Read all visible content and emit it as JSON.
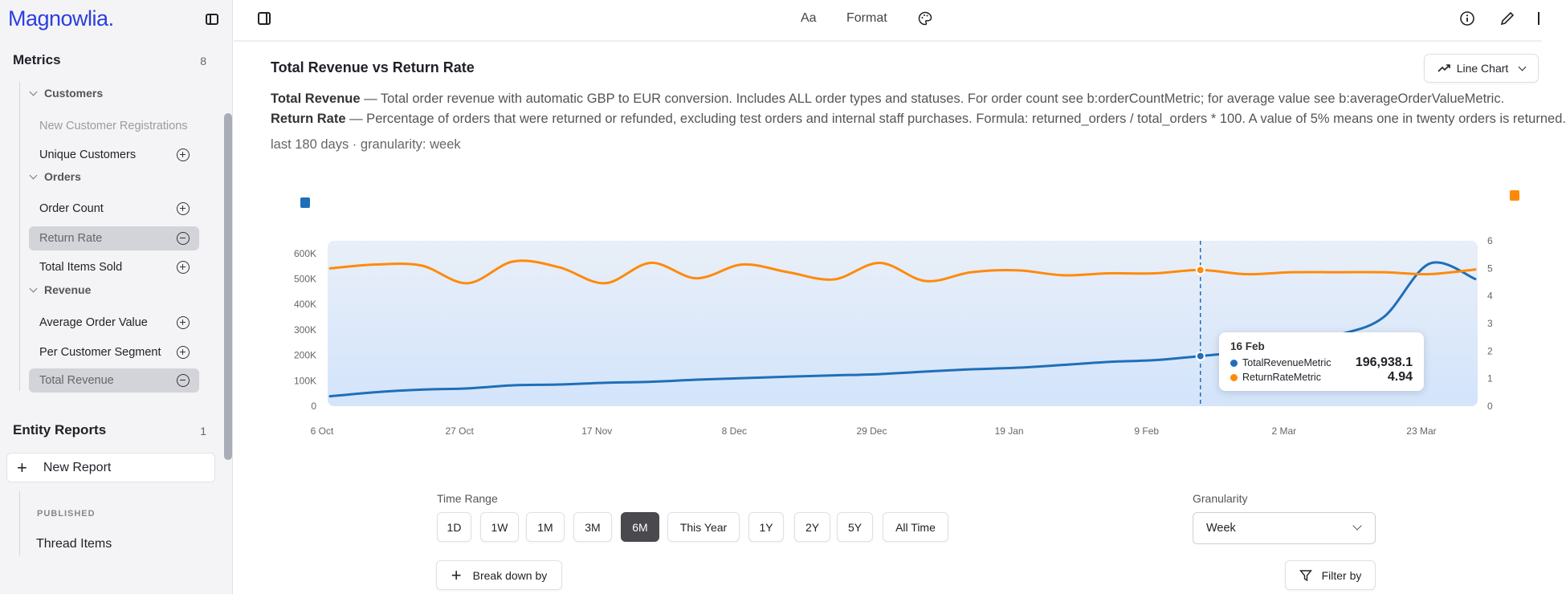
{
  "app": {
    "logo": "Magnowlia."
  },
  "sidebar": {
    "metrics": {
      "title": "Metrics",
      "count": "8",
      "groups": [
        {
          "label": "Customers",
          "items": [
            {
              "label": "New Customer Registrations",
              "state": "disabled"
            },
            {
              "label": "Unique Customers",
              "state": "add"
            }
          ]
        },
        {
          "label": "Orders",
          "items": [
            {
              "label": "Order Count",
              "state": "add"
            },
            {
              "label": "Return Rate",
              "state": "selected"
            },
            {
              "label": "Total Items Sold",
              "state": "add"
            }
          ]
        },
        {
          "label": "Revenue",
          "items": [
            {
              "label": "Average Order Value",
              "state": "add"
            },
            {
              "label": "Per Customer Segment",
              "state": "add"
            },
            {
              "label": "Total Revenue",
              "state": "selected"
            }
          ]
        }
      ]
    },
    "entity_reports": {
      "title": "Entity Reports",
      "count": "1",
      "new_report": "New Report",
      "published_label": "PUBLISHED",
      "reports": [
        "Thread Items"
      ]
    }
  },
  "toolbar": {
    "font": "Aa",
    "format": "Format"
  },
  "chart_header": {
    "title": "Total Revenue vs Return Rate",
    "chart_type": "Line Chart",
    "desc1_name": "Total Revenue",
    "desc1": " — Total order revenue with automatic GBP to EUR conversion. Includes ALL order types and statuses. For order count see b:orderCountMetric; for average value see b:averageOrderValueMetric.",
    "desc2_name": "Return Rate",
    "desc2": " — Percentage of orders that were returned or refunded, excluding test orders and internal staff purchases. Formula: returned_orders / total_orders * 100. A value of 5% means one in twenty orders is returned.",
    "meta": "last 180 days · granularity: week"
  },
  "chart_data": {
    "type": "line",
    "x": [
      "6 Oct",
      "13 Oct",
      "20 Oct",
      "27 Oct",
      "3 Nov",
      "10 Nov",
      "17 Nov",
      "24 Nov",
      "1 Dec",
      "8 Dec",
      "15 Dec",
      "22 Dec",
      "29 Dec",
      "5 Jan",
      "12 Jan",
      "19 Jan",
      "26 Jan",
      "2 Feb",
      "9 Feb",
      "16 Feb",
      "23 Feb",
      "2 Mar",
      "9 Mar",
      "16 Mar",
      "23 Mar",
      "30 Mar"
    ],
    "x_ticks": [
      "6 Oct",
      "27 Oct",
      "17 Nov",
      "8 Dec",
      "29 Dec",
      "19 Jan",
      "9 Feb",
      "2 Mar",
      "23 Mar"
    ],
    "series": [
      {
        "name": "TotalRevenueMetric",
        "axis": "left",
        "color": "#1f6fb8",
        "values": [
          39000,
          55000,
          65000,
          70000,
          82000,
          85000,
          92000,
          96000,
          104000,
          110000,
          116000,
          121000,
          126000,
          136000,
          145000,
          151000,
          162000,
          174000,
          181000,
          196938.1,
          215000,
          240000,
          280000,
          350000,
          560000,
          500000
        ]
      },
      {
        "name": "ReturnRateMetric",
        "axis": "right",
        "color": "#ff8a0a",
        "values": [
          5.0,
          5.14,
          5.1,
          4.46,
          5.25,
          5.04,
          4.46,
          5.2,
          4.64,
          5.14,
          4.86,
          4.6,
          5.2,
          4.54,
          4.86,
          4.93,
          4.75,
          4.82,
          4.82,
          4.94,
          4.79,
          4.86,
          4.86,
          4.86,
          4.79,
          4.96
        ]
      }
    ],
    "y_left": {
      "ticks": [
        "0",
        "100K",
        "200K",
        "300K",
        "400K",
        "500K",
        "600K"
      ],
      "tick_values": [
        0,
        100000,
        200000,
        300000,
        400000,
        500000,
        600000
      ],
      "range": [
        0,
        650000
      ]
    },
    "y_right": {
      "ticks": [
        "0",
        "1",
        "2",
        "3",
        "4",
        "5",
        "6"
      ],
      "range": [
        0,
        6
      ]
    },
    "tooltip": {
      "date": "16 Feb",
      "rows": [
        {
          "name": "TotalRevenueMetric",
          "value": "196,938.1"
        },
        {
          "name": "ReturnRateMetric",
          "value": "4.94"
        }
      ]
    },
    "highlight_index": 19,
    "grid": false,
    "legend": "top"
  },
  "controls": {
    "time_range_label": "Time Range",
    "ranges": [
      "1D",
      "1W",
      "1M",
      "3M",
      "6M",
      "This Year",
      "1Y",
      "2Y",
      "5Y",
      "All Time"
    ],
    "active_range": "6M",
    "granularity_label": "Granularity",
    "granularity": "Week",
    "break_down": "Break down by",
    "filter": "Filter by"
  }
}
